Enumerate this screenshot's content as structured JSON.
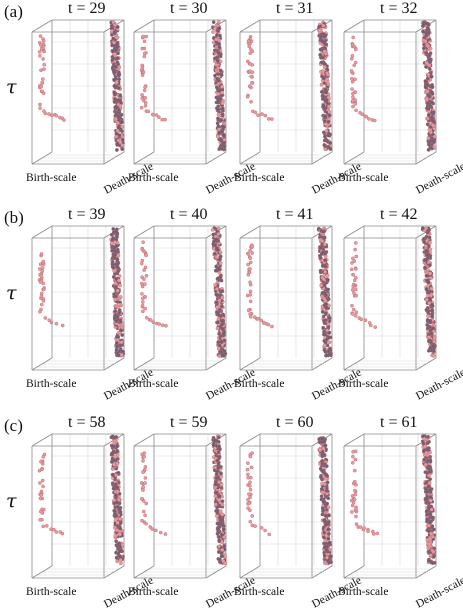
{
  "figure": {
    "tau_symbol": "τ",
    "birth_axis_label": "Birth-scale",
    "death_axis_label": "Death-scale",
    "colors": {
      "point_fill": "#e89a9e",
      "point_stroke": "#b8676c",
      "dense_band": "#6f5f74",
      "box_line": "#8a8a8a",
      "grid_line": "#d8d8d8"
    },
    "rows": [
      {
        "label": "(a)",
        "panels": [
          {
            "t_text": "t = 29"
          },
          {
            "t_text": "t = 30"
          },
          {
            "t_text": "t = 31"
          },
          {
            "t_text": "t = 32"
          }
        ]
      },
      {
        "label": "(b)",
        "panels": [
          {
            "t_text": "t = 39"
          },
          {
            "t_text": "t = 40"
          },
          {
            "t_text": "t = 41"
          },
          {
            "t_text": "t = 42"
          }
        ]
      },
      {
        "label": "(c)",
        "panels": [
          {
            "t_text": "t = 58"
          },
          {
            "t_text": "t = 59"
          },
          {
            "t_text": "t = 60"
          },
          {
            "t_text": "t = 61"
          }
        ]
      }
    ]
  }
}
